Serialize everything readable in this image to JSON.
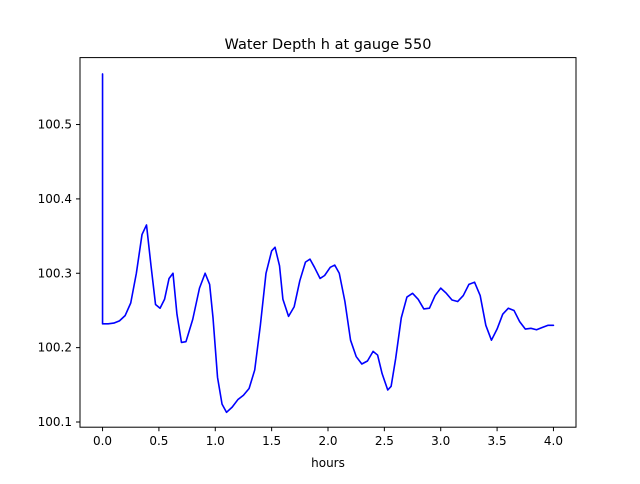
{
  "chart_data": {
    "type": "line",
    "title": "Water Depth h at gauge 550",
    "xlabel": "hours",
    "ylabel": "",
    "xlim": [
      -0.2,
      4.2
    ],
    "ylim": [
      100.093,
      100.59
    ],
    "xticks": [
      0.0,
      0.5,
      1.0,
      1.5,
      2.0,
      2.5,
      3.0,
      3.5,
      4.0
    ],
    "xtick_labels": [
      "0.0",
      "0.5",
      "1.0",
      "1.5",
      "2.0",
      "2.5",
      "3.0",
      "3.5",
      "4.0"
    ],
    "yticks": [
      100.1,
      100.2,
      100.3,
      100.4,
      100.5
    ],
    "ytick_labels": [
      "100.1",
      "100.2",
      "100.3",
      "100.4",
      "100.5"
    ],
    "grid": false,
    "legend": "none",
    "series": [
      {
        "color": "#0000ff",
        "points": [
          [
            0.0,
            100.568
          ],
          [
            0.0,
            100.232
          ],
          [
            0.05,
            100.232
          ],
          [
            0.1,
            100.233
          ],
          [
            0.15,
            100.236
          ],
          [
            0.2,
            100.243
          ],
          [
            0.25,
            100.26
          ],
          [
            0.3,
            100.3
          ],
          [
            0.35,
            100.352
          ],
          [
            0.39,
            100.365
          ],
          [
            0.43,
            100.31
          ],
          [
            0.47,
            100.258
          ],
          [
            0.51,
            100.253
          ],
          [
            0.55,
            100.265
          ],
          [
            0.59,
            100.293
          ],
          [
            0.625,
            100.3
          ],
          [
            0.66,
            100.245
          ],
          [
            0.7,
            100.207
          ],
          [
            0.74,
            100.208
          ],
          [
            0.8,
            100.238
          ],
          [
            0.86,
            100.28
          ],
          [
            0.91,
            100.3
          ],
          [
            0.95,
            100.285
          ],
          [
            0.98,
            100.24
          ],
          [
            1.02,
            100.16
          ],
          [
            1.06,
            100.124
          ],
          [
            1.1,
            100.113
          ],
          [
            1.15,
            100.12
          ],
          [
            1.2,
            100.13
          ],
          [
            1.25,
            100.136
          ],
          [
            1.3,
            100.145
          ],
          [
            1.35,
            100.17
          ],
          [
            1.4,
            100.23
          ],
          [
            1.45,
            100.3
          ],
          [
            1.5,
            100.33
          ],
          [
            1.53,
            100.335
          ],
          [
            1.57,
            100.31
          ],
          [
            1.6,
            100.265
          ],
          [
            1.65,
            100.242
          ],
          [
            1.7,
            100.255
          ],
          [
            1.75,
            100.29
          ],
          [
            1.8,
            100.315
          ],
          [
            1.84,
            100.319
          ],
          [
            1.88,
            100.308
          ],
          [
            1.93,
            100.293
          ],
          [
            1.97,
            100.297
          ],
          [
            2.02,
            100.308
          ],
          [
            2.06,
            100.311
          ],
          [
            2.1,
            100.3
          ],
          [
            2.15,
            100.262
          ],
          [
            2.2,
            100.21
          ],
          [
            2.25,
            100.188
          ],
          [
            2.3,
            100.178
          ],
          [
            2.35,
            100.182
          ],
          [
            2.4,
            100.195
          ],
          [
            2.44,
            100.19
          ],
          [
            2.48,
            100.165
          ],
          [
            2.53,
            100.143
          ],
          [
            2.56,
            100.148
          ],
          [
            2.6,
            100.185
          ],
          [
            2.65,
            100.24
          ],
          [
            2.7,
            100.268
          ],
          [
            2.75,
            100.273
          ],
          [
            2.8,
            100.265
          ],
          [
            2.85,
            100.252
          ],
          [
            2.9,
            100.253
          ],
          [
            2.95,
            100.27
          ],
          [
            3.0,
            100.28
          ],
          [
            3.05,
            100.273
          ],
          [
            3.1,
            100.264
          ],
          [
            3.15,
            100.262
          ],
          [
            3.2,
            100.27
          ],
          [
            3.25,
            100.285
          ],
          [
            3.3,
            100.288
          ],
          [
            3.35,
            100.27
          ],
          [
            3.4,
            100.23
          ],
          [
            3.45,
            100.21
          ],
          [
            3.5,
            100.225
          ],
          [
            3.55,
            100.245
          ],
          [
            3.6,
            100.253
          ],
          [
            3.65,
            100.25
          ],
          [
            3.7,
            100.235
          ],
          [
            3.75,
            100.225
          ],
          [
            3.8,
            100.226
          ],
          [
            3.85,
            100.224
          ],
          [
            3.9,
            100.227
          ],
          [
            3.95,
            100.23
          ],
          [
            4.0,
            100.23
          ]
        ]
      }
    ]
  }
}
